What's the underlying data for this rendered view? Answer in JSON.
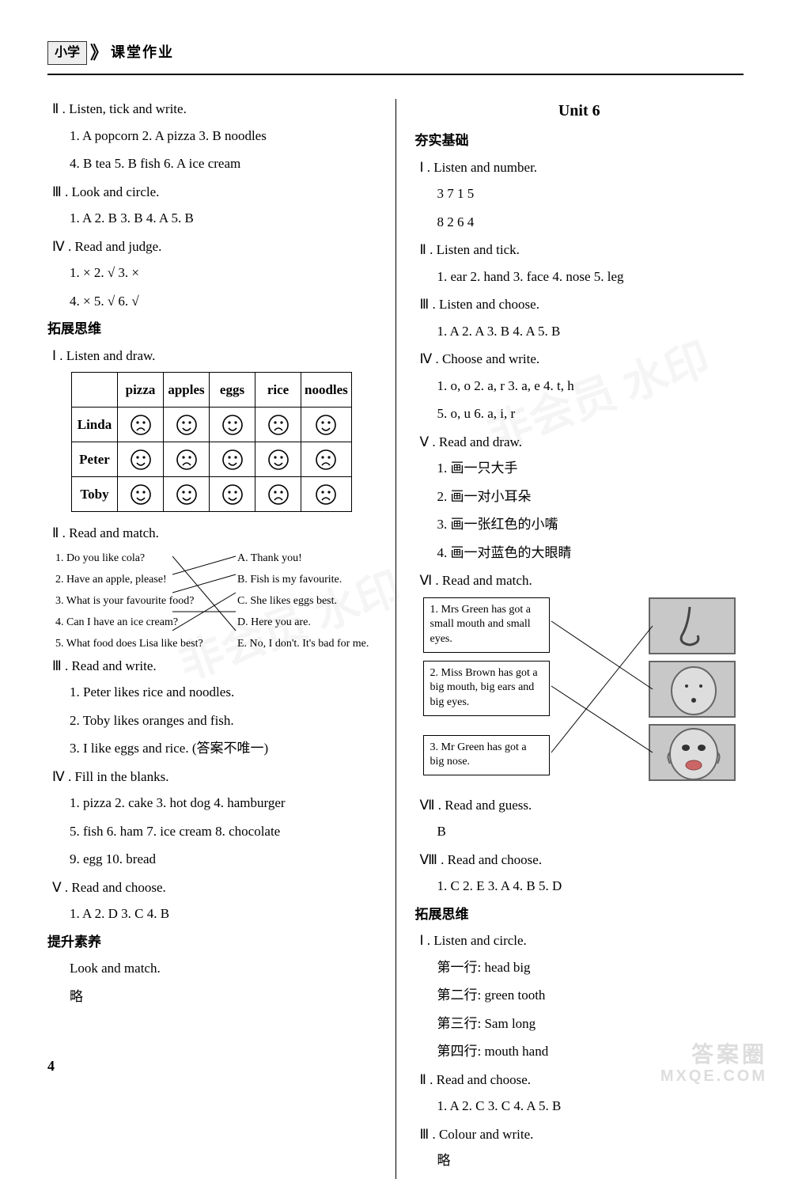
{
  "header": {
    "box": "小学",
    "chevron": "》",
    "text": "课堂作业"
  },
  "left": {
    "q2": {
      "title": "Ⅱ . Listen, tick and write.",
      "l1": "1. A   popcorn   2. A   pizza   3. B   noodles",
      "l2": "4. B   tea   5. B   fish   6. A   ice cream"
    },
    "q3": {
      "title": "Ⅲ . Look and circle.",
      "l1": "1. A   2. B   3. B   4. A   5. B"
    },
    "q4": {
      "title": "Ⅳ . Read and judge.",
      "l1": "1. ×   2. √   3. ×",
      "l2": "4. ×   5. √   6. √"
    },
    "tz": "拓展思维",
    "tz1": {
      "title": "Ⅰ . Listen and draw."
    },
    "table": {
      "cols": [
        "",
        "pizza",
        "apples",
        "eggs",
        "rice",
        "noodles"
      ],
      "rows": [
        {
          "name": "Linda",
          "faces": [
            "sad",
            "happy",
            "happy",
            "sad",
            "happy"
          ]
        },
        {
          "name": "Peter",
          "faces": [
            "happy",
            "sad",
            "happy",
            "happy",
            "sad"
          ]
        },
        {
          "name": "Toby",
          "faces": [
            "happy",
            "happy",
            "happy",
            "sad",
            "sad"
          ]
        }
      ]
    },
    "tz2": {
      "title": "Ⅱ . Read and match.",
      "left": [
        "1. Do you like cola?",
        "2. Have an apple, please!",
        "3. What is your favourite food?",
        "4. Can I have an ice cream?",
        "5. What food does Lisa like best?"
      ],
      "right": [
        "A. Thank you!",
        "B. Fish is my favourite.",
        "C. She likes eggs best.",
        "D. Here you are.",
        "E. No, I don't. It's bad for me."
      ]
    },
    "tz3": {
      "title": "Ⅲ . Read and write.",
      "l1": "1. Peter likes rice and noodles.",
      "l2": "2. Toby likes oranges and fish.",
      "l3": "3. I like eggs and rice. (答案不唯一)"
    },
    "tz4": {
      "title": "Ⅳ . Fill in the blanks.",
      "l1": "1. pizza   2. cake   3. hot dog   4. hamburger",
      "l2": "5. fish   6. ham   7. ice cream   8. chocolate",
      "l3": "9. egg   10. bread"
    },
    "tz5": {
      "title": "Ⅴ . Read and choose.",
      "l1": "1. A   2. D   3. C   4. B"
    },
    "ts": "提升素养",
    "ts1": {
      "title": "Look and match.",
      "l1": "略"
    }
  },
  "right": {
    "unit": "Unit 6",
    "hs": "夯实基础",
    "q1": {
      "title": "Ⅰ . Listen and number.",
      "l1": "3   7   1   5",
      "l2": "8   2   6   4"
    },
    "q2": {
      "title": "Ⅱ . Listen and tick.",
      "l1": "1. ear   2. hand   3. face   4. nose   5. leg"
    },
    "q3": {
      "title": "Ⅲ . Listen and choose.",
      "l1": "1. A   2. A   3. B   4. A   5. B"
    },
    "q4": {
      "title": "Ⅳ . Choose and write.",
      "l1": "1. o, o   2. a, r   3. a, e   4. t, h",
      "l2": "5. o, u   6. a, i, r"
    },
    "q5": {
      "title": "Ⅴ . Read and draw.",
      "l1": "1. 画一只大手",
      "l2": "2. 画一对小耳朵",
      "l3": "3. 画一张红色的小嘴",
      "l4": "4. 画一对蓝色的大眼睛"
    },
    "q6": {
      "title": "Ⅵ . Read and match.",
      "boxes": [
        "1. Mrs Green has got a small mouth and small eyes.",
        "2. Miss Brown has got a big mouth, big ears and big eyes.",
        "3. Mr Green has got a big nose."
      ]
    },
    "q7": {
      "title": "Ⅶ . Read and guess.",
      "l1": "B"
    },
    "q8": {
      "title": "Ⅷ . Read and choose.",
      "l1": "1. C   2. E   3. A   4. B   5. D"
    },
    "tz": "拓展思维",
    "tz1": {
      "title": "Ⅰ . Listen and circle.",
      "l1": "第一行: head   big",
      "l2": "第二行: green   tooth",
      "l3": "第三行: Sam   long",
      "l4": "第四行: mouth   hand"
    },
    "tz2": {
      "title": "Ⅱ . Read and choose.",
      "l1": "1. A   2. C   3. C   4. A   5. B"
    },
    "tz3": {
      "title": "Ⅲ . Colour and write.",
      "l1": "略"
    }
  },
  "page": "4",
  "watermark": {
    "top": "答案圈",
    "bot": "MXQE.COM"
  }
}
